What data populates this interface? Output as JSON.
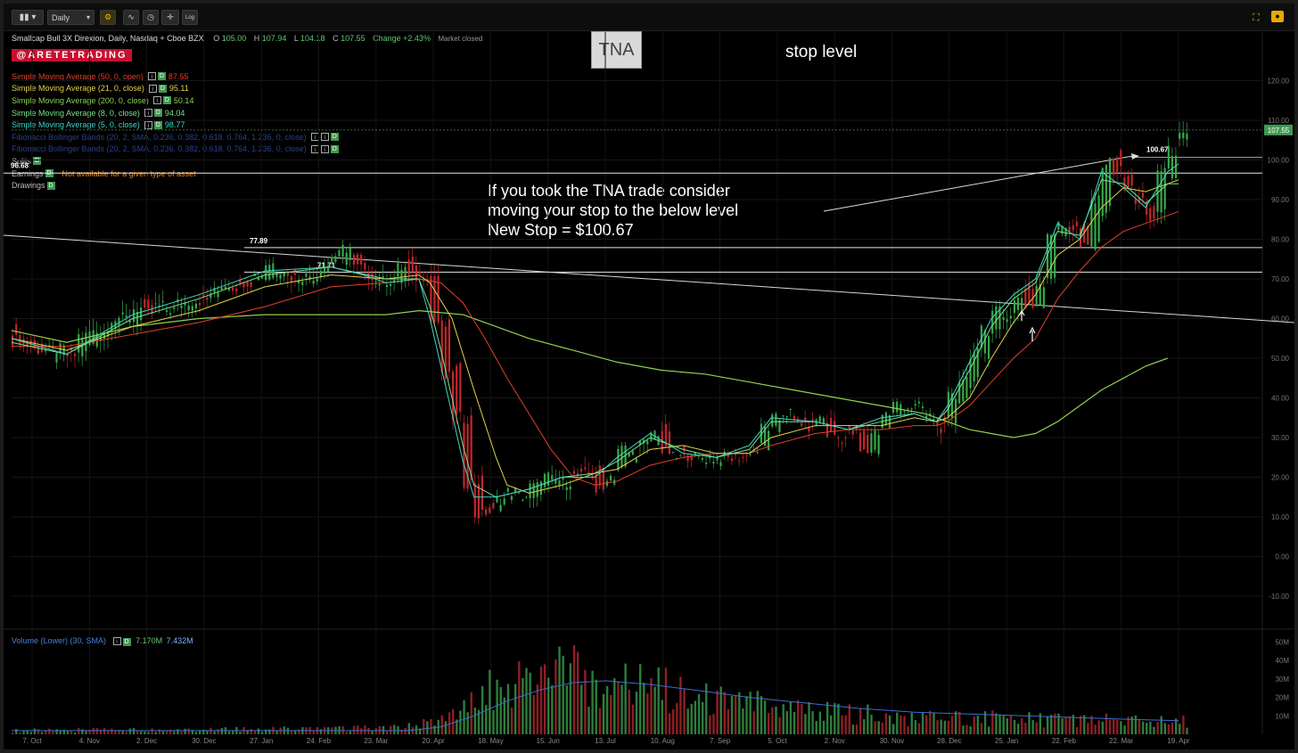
{
  "toolbar": {
    "interval": "Daily",
    "log_label": "Log"
  },
  "header": {
    "instrument": "Smallcap Bull 3X Direxion, Daily, Nasdaq + Cboe BZX",
    "open_label": "O",
    "open": "105.00",
    "high_label": "H",
    "high": "107.94",
    "low_label": "L",
    "low": "104.18",
    "close_label": "C",
    "close": "107.55",
    "change": "Change +2.43%",
    "market_status": "Market closed"
  },
  "brand": "@ARETETRADING",
  "studies": [
    {
      "label": "Simple Moving Average (50, 0, open)",
      "value": "87.55",
      "color": "#e0402a"
    },
    {
      "label": "Simple Moving Average (21, 0, close)",
      "value": "95.11",
      "color": "#e6d24a"
    },
    {
      "label": "Simple Moving Average (200, 0, close)",
      "value": "50.14",
      "color": "#8fd14f"
    },
    {
      "label": "Simple Moving Average (8, 0, close)",
      "value": "94.04",
      "color": "#7ee08a"
    },
    {
      "label": "Simple Moving Average (5, 0, close)",
      "value": "98.77",
      "color": "#3fd6c8"
    },
    {
      "label": "Fibonacci Bollinger Bands (20, 2, SMA, 0.236, 0.382, 0.618, 0.764, 1.236, 0, close)",
      "value": "",
      "color": "#3a5fbf"
    },
    {
      "label": "Fibonacci Bollinger Bands (20, 2, SMA, 0.236, 0.382, 0.618, 0.764, 1.236, 0, close)",
      "value": "",
      "color": "#3a5fbf"
    },
    {
      "label": "Splits",
      "value": "",
      "color": "#bbbbbb"
    },
    {
      "label": "Earnings",
      "value": "",
      "color": "#bbbbbb",
      "note": "Not available for a given type of asset"
    },
    {
      "label": "Drawings",
      "value": "",
      "color": "#bbbbbb"
    }
  ],
  "annotations": {
    "ticker": "TNA",
    "stop_note": "stop level",
    "comment_lines": [
      "If you took the TNA trade consider",
      "moving your stop to the below level",
      "New Stop = $100.67"
    ],
    "level_labels": [
      "77.89",
      "71.71",
      "100.67",
      "96.68"
    ],
    "last_price_tag": "107.55"
  },
  "volume_legend": {
    "label": "Volume (Lower) (30, SMA)",
    "value1": "7.170M",
    "value2": "7.432M"
  },
  "chart_data": [
    {
      "type": "candlestick",
      "price_axis": {
        "range": [
          -10,
          125
        ],
        "ticks": [
          120,
          110,
          100,
          90,
          80,
          70,
          60,
          50,
          40,
          30,
          20,
          10,
          0,
          -10
        ],
        "tick_labels": [
          "120.00",
          "110.00",
          "100.00",
          "90.00",
          "80.00",
          "70.00",
          "60.00",
          "50.00",
          "40.00",
          "30.00",
          "20.00",
          "10.00",
          "0.00",
          "-10.00"
        ]
      },
      "x_ticks": [
        "7. Oct",
        "4. Nov",
        "2. Dec",
        "30. Dec",
        "27. Jan",
        "24. Feb",
        "23. Mar",
        "20. Apr",
        "18. May",
        "15. Jun",
        "13. Jul",
        "10. Aug",
        "7. Sep",
        "5. Oct",
        "2. Nov",
        "30. Nov",
        "28. Dec",
        "25. Jan",
        "22. Feb",
        "22. Mar",
        "19. Apr"
      ],
      "close_path": [
        [
          0,
          56
        ],
        [
          3,
          50
        ],
        [
          5,
          52
        ],
        [
          8,
          57
        ],
        [
          11,
          62
        ],
        [
          14,
          62
        ],
        [
          17,
          66
        ],
        [
          20,
          70
        ],
        [
          23,
          72
        ],
        [
          26,
          71
        ],
        [
          29,
          74
        ],
        [
          30,
          76
        ],
        [
          32,
          70
        ],
        [
          34,
          68
        ],
        [
          35,
          73
        ],
        [
          37,
          70
        ],
        [
          38,
          58
        ],
        [
          39,
          46
        ],
        [
          40,
          35
        ],
        [
          41,
          20
        ],
        [
          42,
          12
        ],
        [
          43,
          12
        ],
        [
          44,
          16
        ],
        [
          45,
          15
        ],
        [
          46,
          15
        ],
        [
          47,
          18
        ],
        [
          50,
          20
        ],
        [
          52,
          22
        ],
        [
          53,
          18
        ],
        [
          55,
          26
        ],
        [
          57,
          30
        ],
        [
          58,
          33
        ],
        [
          59,
          26
        ],
        [
          61,
          26
        ],
        [
          64,
          25
        ],
        [
          67,
          28
        ],
        [
          69,
          36
        ],
        [
          71,
          35
        ],
        [
          73,
          34
        ],
        [
          74,
          31
        ],
        [
          76,
          32
        ],
        [
          77,
          28
        ],
        [
          79,
          36
        ],
        [
          80,
          39
        ],
        [
          81,
          38
        ],
        [
          82,
          36
        ],
        [
          83,
          34
        ],
        [
          84,
          34
        ],
        [
          85,
          40
        ],
        [
          86,
          44
        ],
        [
          87,
          50
        ],
        [
          88,
          56
        ],
        [
          89,
          61
        ],
        [
          90,
          62
        ],
        [
          91,
          67
        ],
        [
          92,
          63
        ],
        [
          93,
          70
        ],
        [
          94,
          80
        ],
        [
          95,
          85
        ],
        [
          96,
          84
        ],
        [
          97,
          78
        ],
        [
          98,
          88
        ],
        [
          99,
          100
        ],
        [
          100,
          97
        ],
        [
          101,
          92
        ],
        [
          102,
          88
        ],
        [
          103,
          86
        ],
        [
          104,
          97
        ],
        [
          105,
          104
        ],
        [
          106,
          107.55
        ]
      ],
      "sma5_path": [
        [
          0,
          55
        ],
        [
          5,
          51
        ],
        [
          11,
          61
        ],
        [
          17,
          66
        ],
        [
          23,
          72
        ],
        [
          29,
          73
        ],
        [
          32,
          71
        ],
        [
          34,
          69
        ],
        [
          37,
          70
        ],
        [
          38,
          60
        ],
        [
          39,
          48
        ],
        [
          40,
          36
        ],
        [
          41,
          24
        ],
        [
          42,
          15
        ],
        [
          44,
          15
        ],
        [
          47,
          17
        ],
        [
          50,
          20
        ],
        [
          53,
          20
        ],
        [
          55,
          25
        ],
        [
          58,
          31
        ],
        [
          61,
          26
        ],
        [
          64,
          25
        ],
        [
          67,
          28
        ],
        [
          69,
          35
        ],
        [
          73,
          34
        ],
        [
          76,
          32
        ],
        [
          79,
          35
        ],
        [
          82,
          36
        ],
        [
          84,
          34
        ],
        [
          85,
          38
        ],
        [
          87,
          49
        ],
        [
          89,
          60
        ],
        [
          91,
          66
        ],
        [
          93,
          70
        ],
        [
          95,
          84
        ],
        [
          97,
          80
        ],
        [
          99,
          97
        ],
        [
          101,
          93
        ],
        [
          103,
          88
        ],
        [
          105,
          97
        ],
        [
          106,
          99
        ]
      ],
      "sma8_path": [
        [
          0,
          54
        ],
        [
          5,
          51
        ],
        [
          11,
          60
        ],
        [
          17,
          65
        ],
        [
          23,
          71
        ],
        [
          29,
          73
        ],
        [
          34,
          70
        ],
        [
          37,
          70
        ],
        [
          38,
          63
        ],
        [
          39,
          52
        ],
        [
          40,
          40
        ],
        [
          41,
          28
        ],
        [
          42,
          18
        ],
        [
          44,
          15
        ],
        [
          47,
          17
        ],
        [
          50,
          20
        ],
        [
          53,
          21
        ],
        [
          55,
          24
        ],
        [
          58,
          30
        ],
        [
          61,
          27
        ],
        [
          64,
          25
        ],
        [
          67,
          27
        ],
        [
          69,
          34
        ],
        [
          73,
          34
        ],
        [
          76,
          32
        ],
        [
          79,
          34
        ],
        [
          82,
          36
        ],
        [
          84,
          34
        ],
        [
          85,
          37
        ],
        [
          87,
          47
        ],
        [
          89,
          58
        ],
        [
          91,
          65
        ],
        [
          93,
          69
        ],
        [
          95,
          82
        ],
        [
          97,
          81
        ],
        [
          99,
          95
        ],
        [
          101,
          94
        ],
        [
          103,
          89
        ],
        [
          105,
          94
        ],
        [
          106,
          94
        ]
      ],
      "sma21_path": [
        [
          0,
          55
        ],
        [
          5,
          52
        ],
        [
          11,
          58
        ],
        [
          17,
          62
        ],
        [
          23,
          68
        ],
        [
          29,
          71
        ],
        [
          34,
          70
        ],
        [
          37,
          71
        ],
        [
          38,
          69
        ],
        [
          40,
          60
        ],
        [
          42,
          42
        ],
        [
          44,
          25
        ],
        [
          45,
          18
        ],
        [
          47,
          16
        ],
        [
          50,
          18
        ],
        [
          53,
          21
        ],
        [
          55,
          22
        ],
        [
          58,
          27
        ],
        [
          61,
          28
        ],
        [
          64,
          26
        ],
        [
          67,
          26
        ],
        [
          69,
          30
        ],
        [
          73,
          33
        ],
        [
          76,
          33
        ],
        [
          79,
          33
        ],
        [
          82,
          35
        ],
        [
          84,
          34
        ],
        [
          85,
          35
        ],
        [
          87,
          40
        ],
        [
          89,
          50
        ],
        [
          91,
          59
        ],
        [
          93,
          66
        ],
        [
          95,
          76
        ],
        [
          97,
          80
        ],
        [
          99,
          88
        ],
        [
          101,
          93
        ],
        [
          103,
          92
        ],
        [
          105,
          94
        ],
        [
          106,
          95
        ]
      ],
      "sma50_path": [
        [
          0,
          53
        ],
        [
          5,
          53
        ],
        [
          11,
          56
        ],
        [
          17,
          59
        ],
        [
          23,
          63
        ],
        [
          29,
          68
        ],
        [
          34,
          69
        ],
        [
          37,
          70
        ],
        [
          39,
          69
        ],
        [
          41,
          64
        ],
        [
          43,
          55
        ],
        [
          45,
          45
        ],
        [
          47,
          36
        ],
        [
          49,
          27
        ],
        [
          51,
          20
        ],
        [
          53,
          18
        ],
        [
          55,
          19
        ],
        [
          58,
          23
        ],
        [
          61,
          25
        ],
        [
          64,
          26
        ],
        [
          67,
          26
        ],
        [
          69,
          28
        ],
        [
          73,
          31
        ],
        [
          76,
          32
        ],
        [
          79,
          32
        ],
        [
          82,
          33
        ],
        [
          84,
          33
        ],
        [
          85,
          34
        ],
        [
          87,
          38
        ],
        [
          89,
          44
        ],
        [
          91,
          50
        ],
        [
          93,
          55
        ],
        [
          95,
          65
        ],
        [
          97,
          72
        ],
        [
          99,
          78
        ],
        [
          101,
          82
        ],
        [
          103,
          84
        ],
        [
          105,
          86
        ],
        [
          106,
          87
        ]
      ],
      "sma200_path": [
        [
          0,
          57
        ],
        [
          5,
          54
        ],
        [
          11,
          58
        ],
        [
          17,
          60
        ],
        [
          23,
          61
        ],
        [
          29,
          61
        ],
        [
          34,
          61
        ],
        [
          37,
          62
        ],
        [
          41,
          61
        ],
        [
          44,
          58
        ],
        [
          47,
          55
        ],
        [
          51,
          52
        ],
        [
          55,
          49
        ],
        [
          59,
          47
        ],
        [
          63,
          46
        ],
        [
          67,
          44
        ],
        [
          71,
          42
        ],
        [
          75,
          40
        ],
        [
          79,
          38
        ],
        [
          83,
          36
        ],
        [
          85,
          34
        ],
        [
          87,
          32
        ],
        [
          89,
          31
        ],
        [
          91,
          30
        ],
        [
          93,
          31
        ],
        [
          95,
          34
        ],
        [
          97,
          38
        ],
        [
          99,
          42
        ],
        [
          101,
          45
        ],
        [
          103,
          48
        ],
        [
          105,
          50
        ]
      ],
      "horizontal_levels": [
        96.68,
        77.89,
        71.71
      ],
      "stop_level": 100.67,
      "trendline": [
        [
          0,
          81
        ],
        [
          109,
          59
        ]
      ]
    },
    {
      "type": "bar",
      "series_label": "Volume (Lower) (30, SMA)",
      "axis": {
        "range": [
          0,
          52
        ],
        "tick_labels": [
          "50M",
          "40M",
          "30M",
          "20M",
          "10M"
        ],
        "ticks": [
          50,
          40,
          30,
          20,
          10
        ]
      },
      "volume_profile": [
        [
          0,
          2
        ],
        [
          30,
          3
        ],
        [
          36,
          4
        ],
        [
          39,
          9
        ],
        [
          41,
          16
        ],
        [
          44,
          26
        ],
        [
          47,
          30
        ],
        [
          50,
          33
        ],
        [
          53,
          30
        ],
        [
          57,
          27
        ],
        [
          61,
          20
        ],
        [
          66,
          16
        ],
        [
          71,
          13
        ],
        [
          76,
          11
        ],
        [
          81,
          9
        ],
        [
          86,
          9
        ],
        [
          91,
          8
        ],
        [
          96,
          8
        ],
        [
          101,
          7
        ],
        [
          106,
          7
        ]
      ],
      "sma_profile": [
        [
          0,
          2
        ],
        [
          36,
          2
        ],
        [
          39,
          4
        ],
        [
          42,
          10
        ],
        [
          45,
          18
        ],
        [
          48,
          24
        ],
        [
          51,
          28
        ],
        [
          54,
          29
        ],
        [
          58,
          27
        ],
        [
          62,
          24
        ],
        [
          67,
          20
        ],
        [
          72,
          17
        ],
        [
          77,
          14
        ],
        [
          82,
          12
        ],
        [
          87,
          11
        ],
        [
          92,
          10
        ],
        [
          97,
          9
        ],
        [
          102,
          8
        ],
        [
          106,
          7.4
        ]
      ]
    }
  ]
}
